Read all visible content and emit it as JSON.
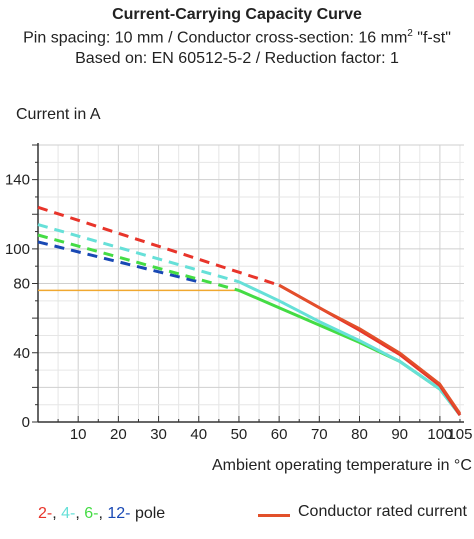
{
  "chart_data": {
    "type": "line",
    "title": "Current-Carrying Capacity Curve",
    "subtitle_line1_main": "Pin spacing: 10 mm / Conductor cross-section: 16 mm",
    "subtitle_line1_sup": "2",
    "subtitle_line1_tail": " \"f-st\"",
    "subtitle_line2": "Based on: EN 60512-5-2 / Reduction factor: 1",
    "ylabel": "Current in A",
    "xlabel": "Ambient operating temperature in °C",
    "xlim": [
      0,
      106
    ],
    "ylim": [
      0,
      160
    ],
    "xticks": [
      10,
      20,
      30,
      40,
      50,
      60,
      70,
      80,
      90,
      100,
      105
    ],
    "yticks": [
      0,
      40,
      80,
      100,
      140
    ],
    "grid": true,
    "rated_current_line": {
      "y": 76,
      "x_end": 50,
      "color": "#f0a830"
    },
    "series": [
      {
        "name": "2-",
        "color": "#e8342a",
        "dashed": [
          [
            0,
            124
          ],
          [
            60,
            79
          ]
        ],
        "solid": [
          [
            60,
            79
          ],
          [
            70,
            66
          ],
          [
            80,
            53
          ],
          [
            90,
            39
          ],
          [
            100,
            21
          ],
          [
            105,
            4
          ]
        ]
      },
      {
        "name": "4-",
        "color": "#66e0d8",
        "dashed": [
          [
            0,
            114
          ],
          [
            50,
            81
          ]
        ],
        "solid": [
          [
            50,
            81
          ],
          [
            60,
            70
          ],
          [
            70,
            58
          ],
          [
            80,
            47
          ],
          [
            90,
            35
          ],
          [
            100,
            19
          ],
          [
            105,
            4
          ]
        ]
      },
      {
        "name": "6-",
        "color": "#44dc44",
        "dashed": [
          [
            0,
            108
          ],
          [
            50,
            76
          ]
        ],
        "solid": [
          [
            50,
            76
          ],
          [
            60,
            66
          ],
          [
            70,
            56
          ],
          [
            80,
            46
          ],
          [
            90,
            35
          ],
          [
            100,
            19
          ],
          [
            105,
            4
          ]
        ]
      },
      {
        "name": "12-",
        "color": "#1848b4",
        "dashed": [
          [
            0,
            104
          ],
          [
            40,
            81
          ]
        ],
        "solid": []
      }
    ],
    "rated_curve": {
      "name": "Conductor rated current",
      "color": "#e2502a",
      "points": [
        [
          60,
          79
        ],
        [
          70,
          66
        ],
        [
          80,
          54
        ],
        [
          90,
          40
        ],
        [
          100,
          22
        ],
        [
          105,
          5
        ]
      ]
    },
    "legend": {
      "poles": [
        {
          "text": "2-",
          "color": "#e8342a"
        },
        {
          "text": ", ",
          "color": "#222222"
        },
        {
          "text": "4-",
          "color": "#66e0d8"
        },
        {
          "text": ", ",
          "color": "#222222"
        },
        {
          "text": "6-",
          "color": "#44dc44"
        },
        {
          "text": ", ",
          "color": "#222222"
        },
        {
          "text": "12-",
          "color": "#1848b4"
        },
        {
          "text": " pole",
          "color": "#222222"
        }
      ],
      "rated_label": "Conductor rated current"
    }
  }
}
